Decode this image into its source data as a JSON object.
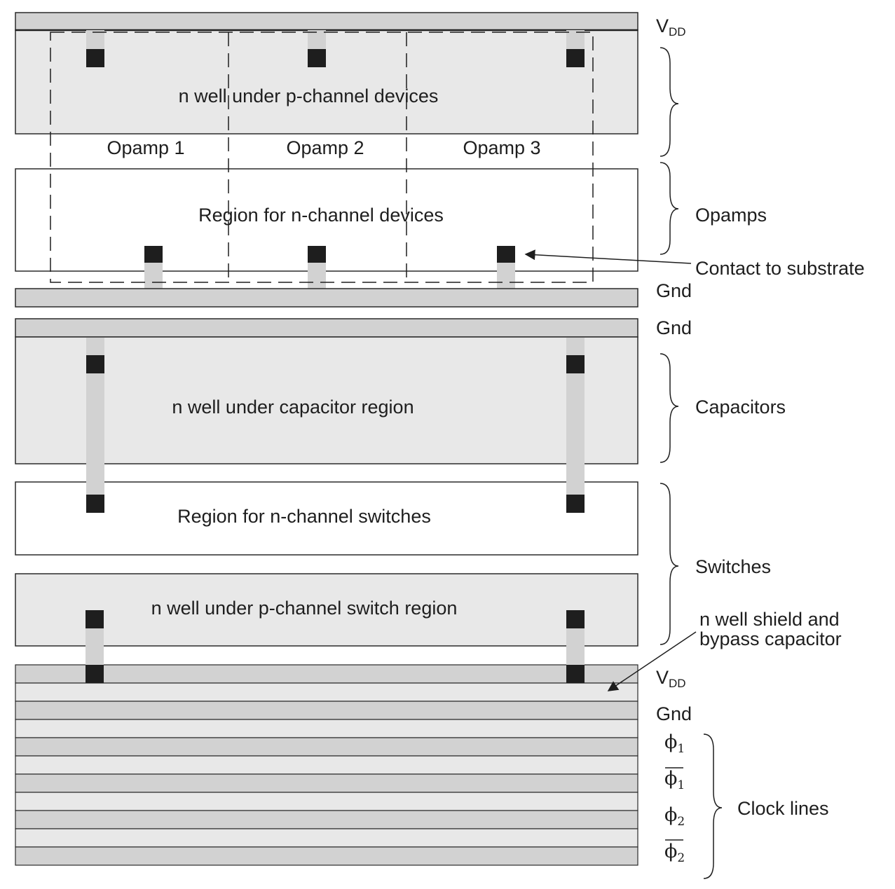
{
  "regions": {
    "nwell_pchannel": "n well under p-channel devices",
    "nchannel_devices": "Region for n-channel devices",
    "nwell_capacitor": "n well under capacitor region",
    "nchannel_switches": "Region for n-channel switches",
    "nwell_pchannel_switch": "n well under p-channel switch region"
  },
  "opamps": [
    "Opamp 1",
    "Opamp 2",
    "Opamp 3"
  ],
  "rails": {
    "vdd_main": "V",
    "vdd_sub": "DD",
    "gnd_1": "Gnd",
    "gnd_2": "Gnd",
    "vdd_bottom_main": "V",
    "vdd_bottom_sub": "DD",
    "gnd_bottom": "Gnd"
  },
  "clock_symbols": [
    {
      "symbol": "ϕ",
      "sub": "1",
      "overbar": false
    },
    {
      "symbol": "ϕ",
      "sub": "1",
      "overbar": true
    },
    {
      "symbol": "ϕ",
      "sub": "2",
      "overbar": false
    },
    {
      "symbol": "ϕ",
      "sub": "2",
      "overbar": true
    }
  ],
  "group_labels": {
    "opamps": "Opamps",
    "contact": "Contact to substrate",
    "capacitors": "Capacitors",
    "switches": "Switches",
    "shield_line1": "n well shield and",
    "shield_line2": "bypass capacitor",
    "clock_lines": "Clock lines"
  },
  "colors": {
    "nwell_fill": "#e8e8e8",
    "rail_fill": "#d2d2d2",
    "contact_fill": "#1e1e1e",
    "outline": "#2a2a2a"
  }
}
